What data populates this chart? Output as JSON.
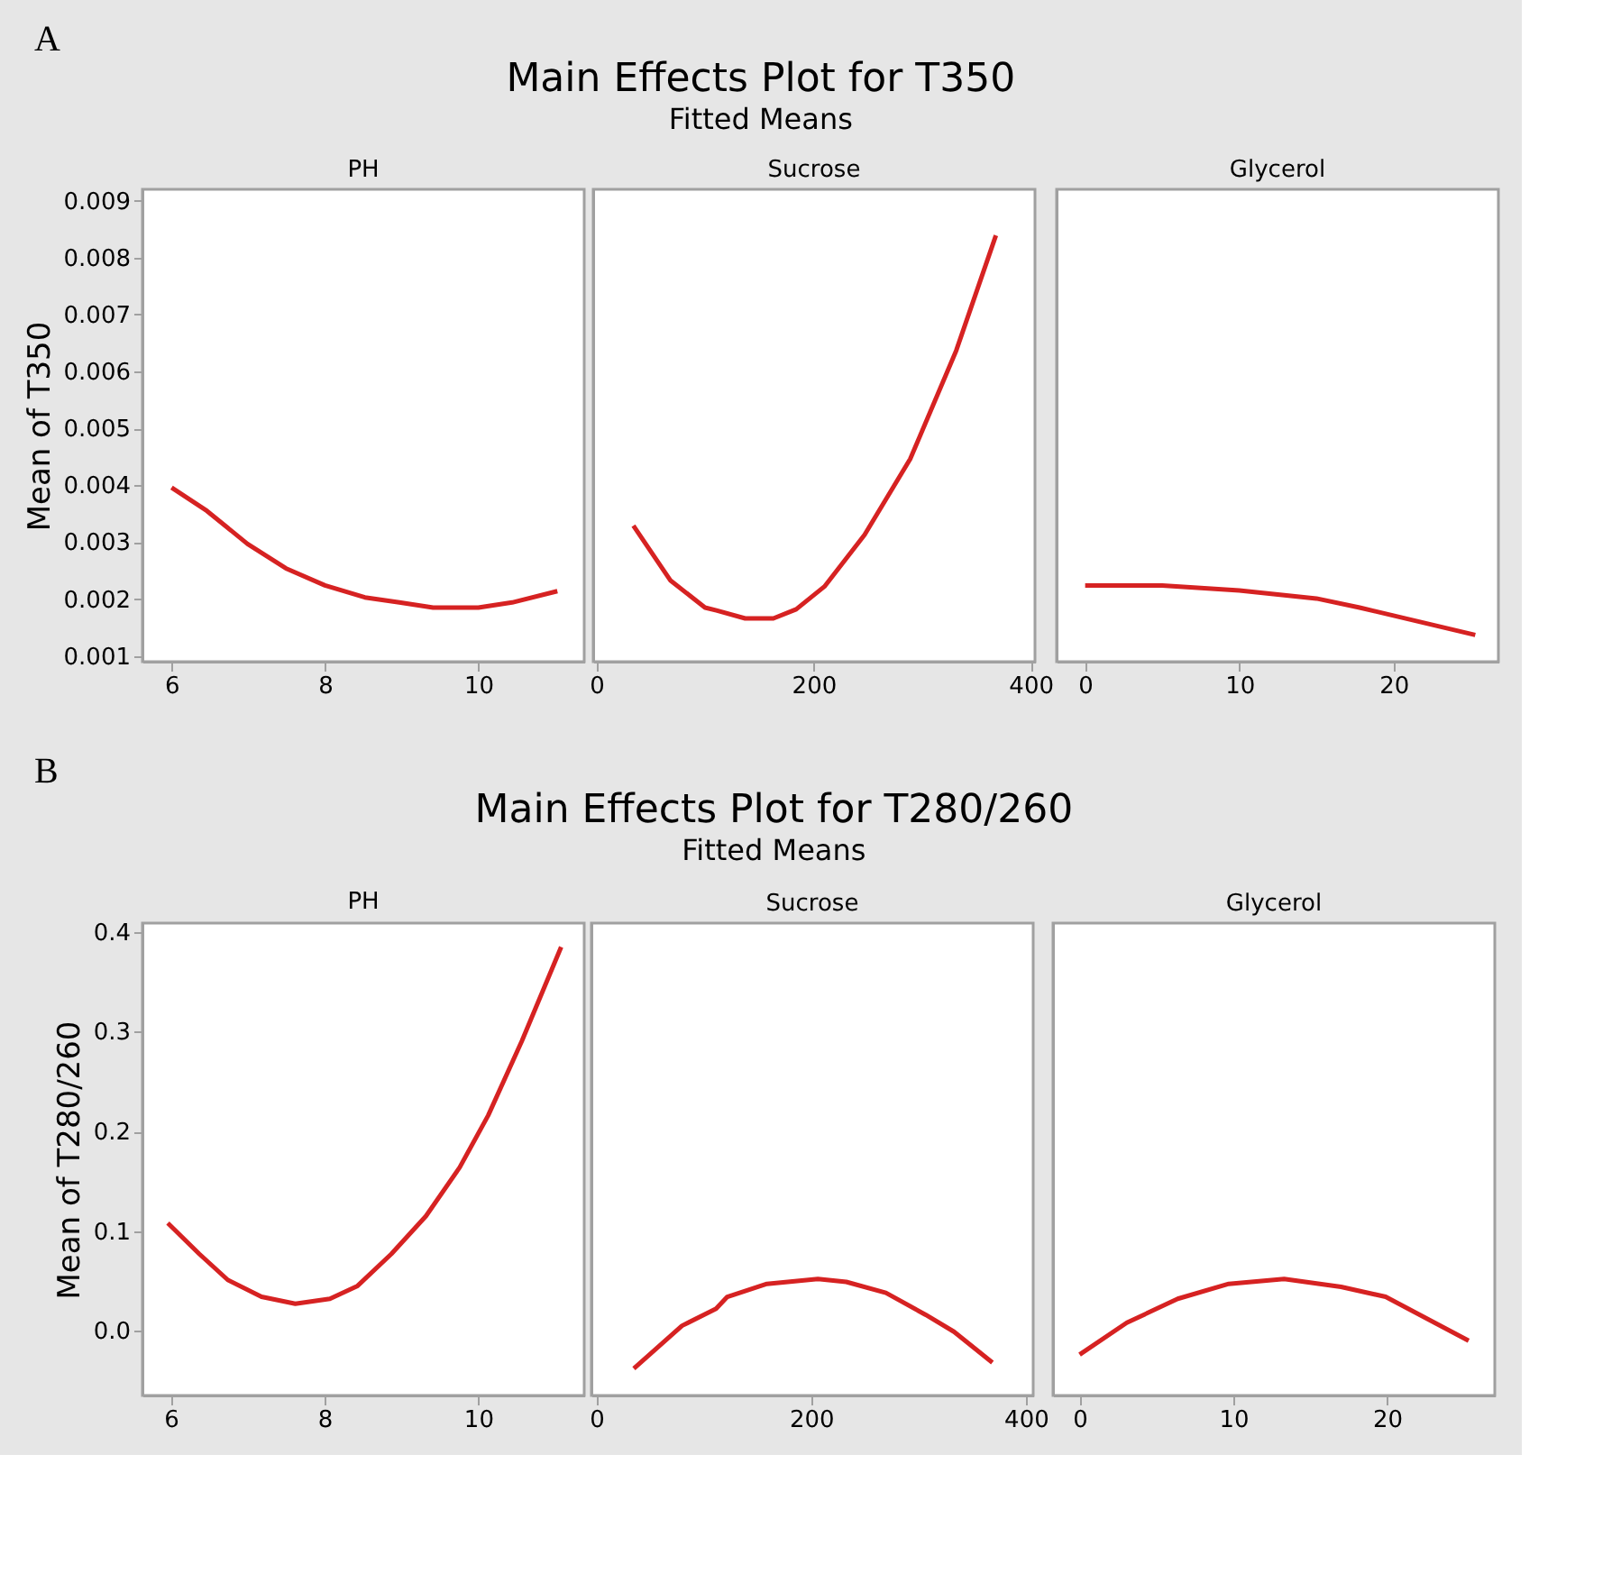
{
  "chart_data": [
    {
      "type": "line",
      "title": "PH",
      "annotations": [
        "A",
        "Main Effects Plot for T350",
        "Fitted Means"
      ],
      "ylabel": "Mean of T350",
      "xlim": [
        5.62,
        11.38
      ],
      "xticks": [
        6,
        8,
        10
      ],
      "ylim": [
        0.0009,
        0.0092
      ],
      "yticks": [
        0.001,
        0.002,
        0.003,
        0.004,
        0.005,
        0.006,
        0.007,
        0.008,
        0.009
      ],
      "x": [
        6,
        6.46,
        6.99,
        7.49,
        8,
        8.52,
        8.97,
        9.41,
        10,
        10.44,
        11.03
      ],
      "series": [
        {
          "color": "#d62222",
          "values": [
            0.00396,
            0.00355,
            0.00297,
            0.00254,
            0.00224,
            0.00203,
            0.00194,
            0.00185,
            0.00185,
            0.00194,
            0.00214
          ]
        }
      ]
    },
    {
      "type": "line",
      "title": "Sucrose",
      "xlim": [
        -3,
        404
      ],
      "xticks": [
        0,
        200,
        400
      ],
      "ylim": [
        0.0009,
        0.0092
      ],
      "tick_labels": "x",
      "x": [
        34,
        68,
        100,
        110.5,
        137,
        163,
        184,
        210,
        247,
        289,
        331.5,
        368
      ],
      "series": [
        {
          "color": "#d62222",
          "values": [
            0.00329,
            0.00233,
            0.00185,
            0.0018,
            0.00166,
            0.00166,
            0.00182,
            0.00222,
            0.00313,
            0.00446,
            0.00637,
            0.00839
          ]
        }
      ]
    },
    {
      "type": "line",
      "title": "Glycerol",
      "xlim": [
        -1.85,
        26.8
      ],
      "xticks": [
        0,
        10,
        20
      ],
      "ylim": [
        0.0009,
        0.0092
      ],
      "tick_labels": "x",
      "x": [
        0,
        5,
        10,
        15,
        17.8,
        25.3
      ],
      "series": [
        {
          "color": "#d62222",
          "values": [
            0.00224,
            0.00224,
            0.00215,
            0.00201,
            0.00185,
            0.00137
          ]
        }
      ]
    },
    {
      "type": "line",
      "title": "PH",
      "annotations": [
        "B",
        "Main Effects Plot for T280/260",
        "Fitted Means"
      ],
      "ylabel": "Mean of T280/260",
      "xlim": [
        5.63,
        11.38
      ],
      "xticks": [
        6,
        8,
        10
      ],
      "ylim": [
        -0.065,
        0.409
      ],
      "yticks": [
        {
          "value": 0,
          "label": "0.0"
        },
        0.1,
        0.2,
        0.3,
        0.4
      ],
      "x": [
        5.96,
        6.37,
        6.74,
        7.18,
        7.62,
        8.07,
        8.43,
        8.87,
        9.32,
        9.76,
        10.13,
        10.57,
        11.08
      ],
      "series": [
        {
          "color": "#d62222",
          "values": [
            0.108,
            0.077,
            0.051,
            0.034,
            0.027,
            0.032,
            0.045,
            0.077,
            0.115,
            0.164,
            0.216,
            0.291,
            0.385
          ]
        }
      ]
    },
    {
      "type": "line",
      "title": "Sucrose",
      "xlim": [
        -4.7,
        406.8
      ],
      "xticks": [
        0,
        200,
        400
      ],
      "ylim": [
        -0.065,
        0.409
      ],
      "tick_labels": "x",
      "x": [
        34.8,
        79.7,
        111.4,
        121.9,
        158.8,
        206.3,
        232.7,
        269.6,
        306.6,
        333,
        368.8
      ],
      "series": [
        {
          "color": "#d62222",
          "values": [
            -0.038,
            0.005,
            0.022,
            0.034,
            0.047,
            0.052,
            0.049,
            0.038,
            0.016,
            -0.001,
            -0.032
          ]
        }
      ]
    },
    {
      "type": "line",
      "title": "Glycerol",
      "xlim": [
        -1.73,
        27.0
      ],
      "xticks": [
        0,
        10,
        20
      ],
      "ylim": [
        -0.065,
        0.409
      ],
      "tick_labels": "x",
      "x": [
        0,
        3.07,
        6.38,
        9.7,
        13.3,
        17.0,
        19.9,
        25.3
      ],
      "series": [
        {
          "color": "#d62222",
          "values": [
            -0.024,
            0.008,
            0.032,
            0.047,
            0.052,
            0.044,
            0.034,
            -0.01
          ]
        }
      ]
    }
  ]
}
